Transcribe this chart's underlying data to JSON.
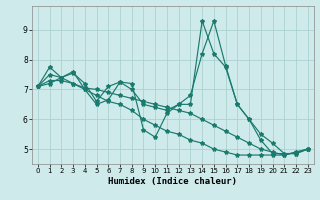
{
  "xlabel": "Humidex (Indice chaleur)",
  "background_color": "#ceeaea",
  "grid_color": "#acd0d0",
  "line_color": "#1a7a6e",
  "xlim": [
    -0.5,
    23.5
  ],
  "ylim": [
    4.5,
    9.8
  ],
  "yticks": [
    5,
    6,
    7,
    8,
    9
  ],
  "xticks": [
    0,
    1,
    2,
    3,
    4,
    5,
    6,
    7,
    8,
    9,
    10,
    11,
    12,
    13,
    14,
    15,
    16,
    17,
    18,
    19,
    20,
    21,
    22,
    23
  ],
  "series": [
    [
      7.1,
      7.75,
      7.4,
      7.6,
      7.0,
      6.5,
      6.65,
      7.25,
      7.2,
      5.65,
      5.4,
      6.2,
      6.5,
      6.5,
      9.3,
      8.2,
      7.75,
      6.5,
      6.0,
      5.5,
      5.2,
      4.85,
      4.85,
      5.0
    ],
    [
      7.1,
      7.3,
      7.3,
      7.2,
      7.05,
      7.0,
      6.9,
      6.8,
      6.7,
      6.6,
      6.5,
      6.4,
      6.3,
      6.2,
      6.0,
      5.8,
      5.6,
      5.4,
      5.2,
      5.0,
      4.9,
      4.8,
      4.9,
      5.0
    ],
    [
      7.1,
      7.5,
      7.4,
      7.55,
      7.2,
      6.6,
      7.1,
      7.25,
      7.0,
      6.5,
      6.4,
      6.3,
      6.5,
      6.8,
      8.2,
      9.3,
      7.8,
      6.5,
      6.0,
      5.3,
      4.85,
      4.85,
      4.85,
      5.0
    ],
    [
      7.1,
      7.2,
      7.4,
      7.2,
      7.0,
      6.8,
      6.6,
      6.5,
      6.3,
      6.0,
      5.8,
      5.6,
      5.5,
      5.3,
      5.2,
      5.0,
      4.9,
      4.8,
      4.8,
      4.8,
      4.8,
      4.8,
      4.9,
      5.0
    ]
  ]
}
